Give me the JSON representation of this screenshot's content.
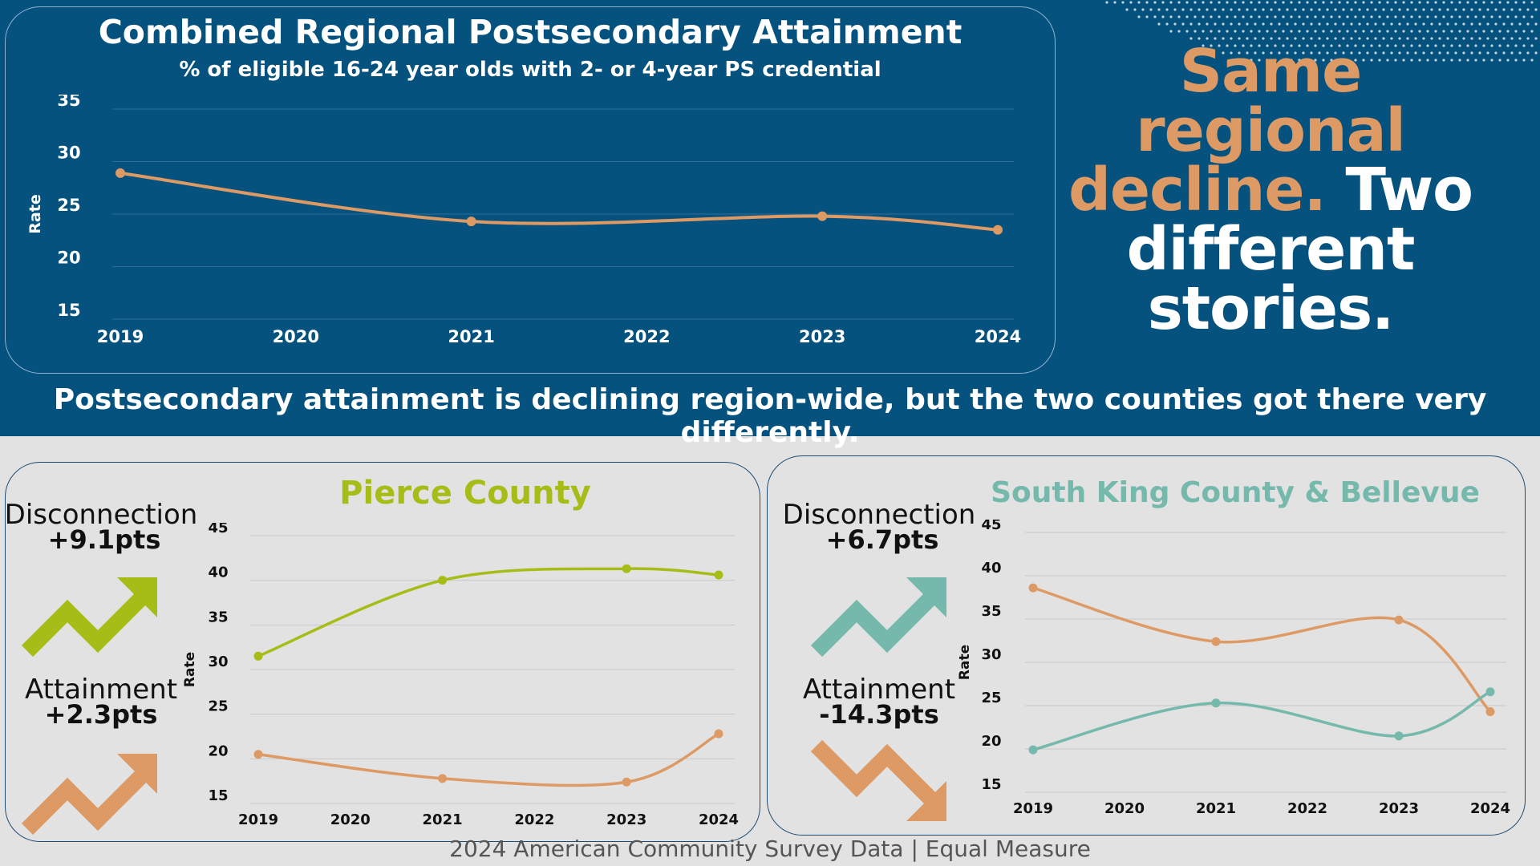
{
  "headline": {
    "part1": "Same regional decline.",
    "part2": "Two different stories."
  },
  "subheadline": "Postsecondary attainment is declining region-wide, but the two counties got there very differently.",
  "footer": "2024 American Community Survey Data | Equal Measure",
  "colors": {
    "background_band": "#05527f",
    "orange": "#dd9a65",
    "green": "#a7bd17",
    "teal": "#75b8ac"
  },
  "chart_data": [
    {
      "type": "line",
      "title": "Combined Regional Postsecondary Attainment",
      "subtitle": "% of eligible 16-24 year olds with 2- or 4-year PS credential",
      "ylabel": "Rate",
      "xlabel": "",
      "categories": [
        "2019",
        "2020",
        "2021",
        "2022",
        "2023",
        "2024"
      ],
      "yticks": [
        35,
        30,
        25,
        20,
        15
      ],
      "ylim": [
        15,
        35
      ],
      "grid": true,
      "series": [
        {
          "color": "#dd9a65",
          "x": [
            "2019",
            "2021",
            "2023",
            "2024"
          ],
          "values": [
            28.9,
            24.3,
            24.8,
            23.5
          ]
        }
      ]
    },
    {
      "type": "line",
      "title": "Pierce County",
      "ylabel": "Rate",
      "xlabel": "",
      "categories": [
        "2019",
        "2020",
        "2021",
        "2022",
        "2023",
        "2024"
      ],
      "yticks": [
        45,
        40,
        35,
        30,
        25,
        20,
        15
      ],
      "ylim": [
        15,
        45
      ],
      "grid": true,
      "series": [
        {
          "color": "#a7bd17",
          "x": [
            "2019",
            "2021",
            "2023",
            "2024"
          ],
          "values": [
            31.5,
            40.0,
            41.3,
            40.6
          ]
        },
        {
          "color": "#dd9a65",
          "x": [
            "2019",
            "2021",
            "2023",
            "2024"
          ],
          "values": [
            20.5,
            17.8,
            17.4,
            22.8
          ]
        }
      ],
      "stats": {
        "disconnection_label": "Disconnection",
        "disconnection_value": "+9.1pts",
        "attainment_label": "Attainment",
        "attainment_value": "+2.3pts"
      }
    },
    {
      "type": "line",
      "title": "South King County & Bellevue",
      "ylabel": "Rate",
      "xlabel": "",
      "categories": [
        "2019",
        "2020",
        "2021",
        "2022",
        "2023",
        "2024"
      ],
      "yticks": [
        45,
        40,
        35,
        30,
        25,
        20,
        15
      ],
      "ylim": [
        15,
        45
      ],
      "grid": true,
      "series": [
        {
          "color": "#dd9a65",
          "x": [
            "2019",
            "2021",
            "2023",
            "2024"
          ],
          "values": [
            38.6,
            32.4,
            34.9,
            24.3
          ]
        },
        {
          "color": "#75b8ac",
          "x": [
            "2019",
            "2021",
            "2023",
            "2024"
          ],
          "values": [
            19.9,
            25.3,
            21.5,
            26.6
          ]
        }
      ],
      "stats": {
        "disconnection_label": "Disconnection",
        "disconnection_value": "+6.7pts",
        "attainment_label": "Attainment",
        "attainment_value": "-14.3pts"
      }
    }
  ]
}
